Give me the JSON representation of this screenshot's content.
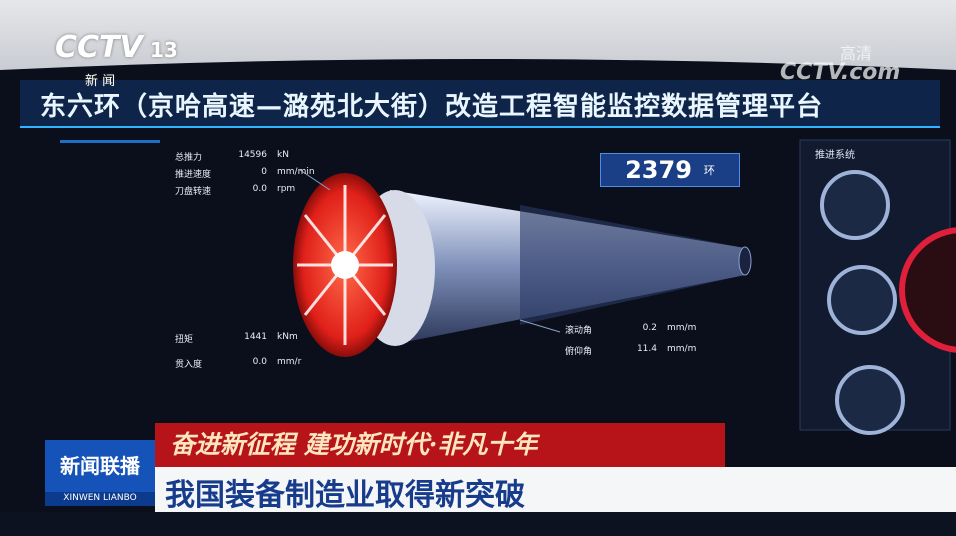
{
  "channel": {
    "logo": "CCTV",
    "number": "13",
    "label": "新 闻"
  },
  "watermark": {
    "label": "高清",
    "logo": "CCTV.com"
  },
  "dashboard": {
    "title": "东六环（京哈高速—潞苑北大街）改造工程智能监控数据管理平台",
    "params_top": [
      {
        "name": "总推力",
        "value": "14596",
        "unit": "kN"
      },
      {
        "name": "推进速度",
        "value": "0",
        "unit": "mm/min"
      },
      {
        "name": "刀盘转速",
        "value": "0.0",
        "unit": "rpm"
      }
    ],
    "params_bottom": [
      {
        "name": "扭矩",
        "value": "1441",
        "unit": "kNm"
      },
      {
        "name": "贯入度",
        "value": "0.0",
        "unit": "mm/r"
      }
    ],
    "params_right": [
      {
        "name": "滚动角",
        "value": "0.2",
        "unit": "mm/m"
      },
      {
        "name": "俯仰角",
        "value": "11.4",
        "unit": "mm/m"
      }
    ],
    "ring": {
      "value": "2379",
      "unit": "环"
    },
    "panel": {
      "title": "推进系统"
    }
  },
  "ticker": {
    "slogan": "奋进新征程 建功新时代·非凡十年",
    "headline": "我国装备制造业取得新突破"
  },
  "program": {
    "name": "新闻联播",
    "pinyin": "XINWEN LIANBO"
  }
}
